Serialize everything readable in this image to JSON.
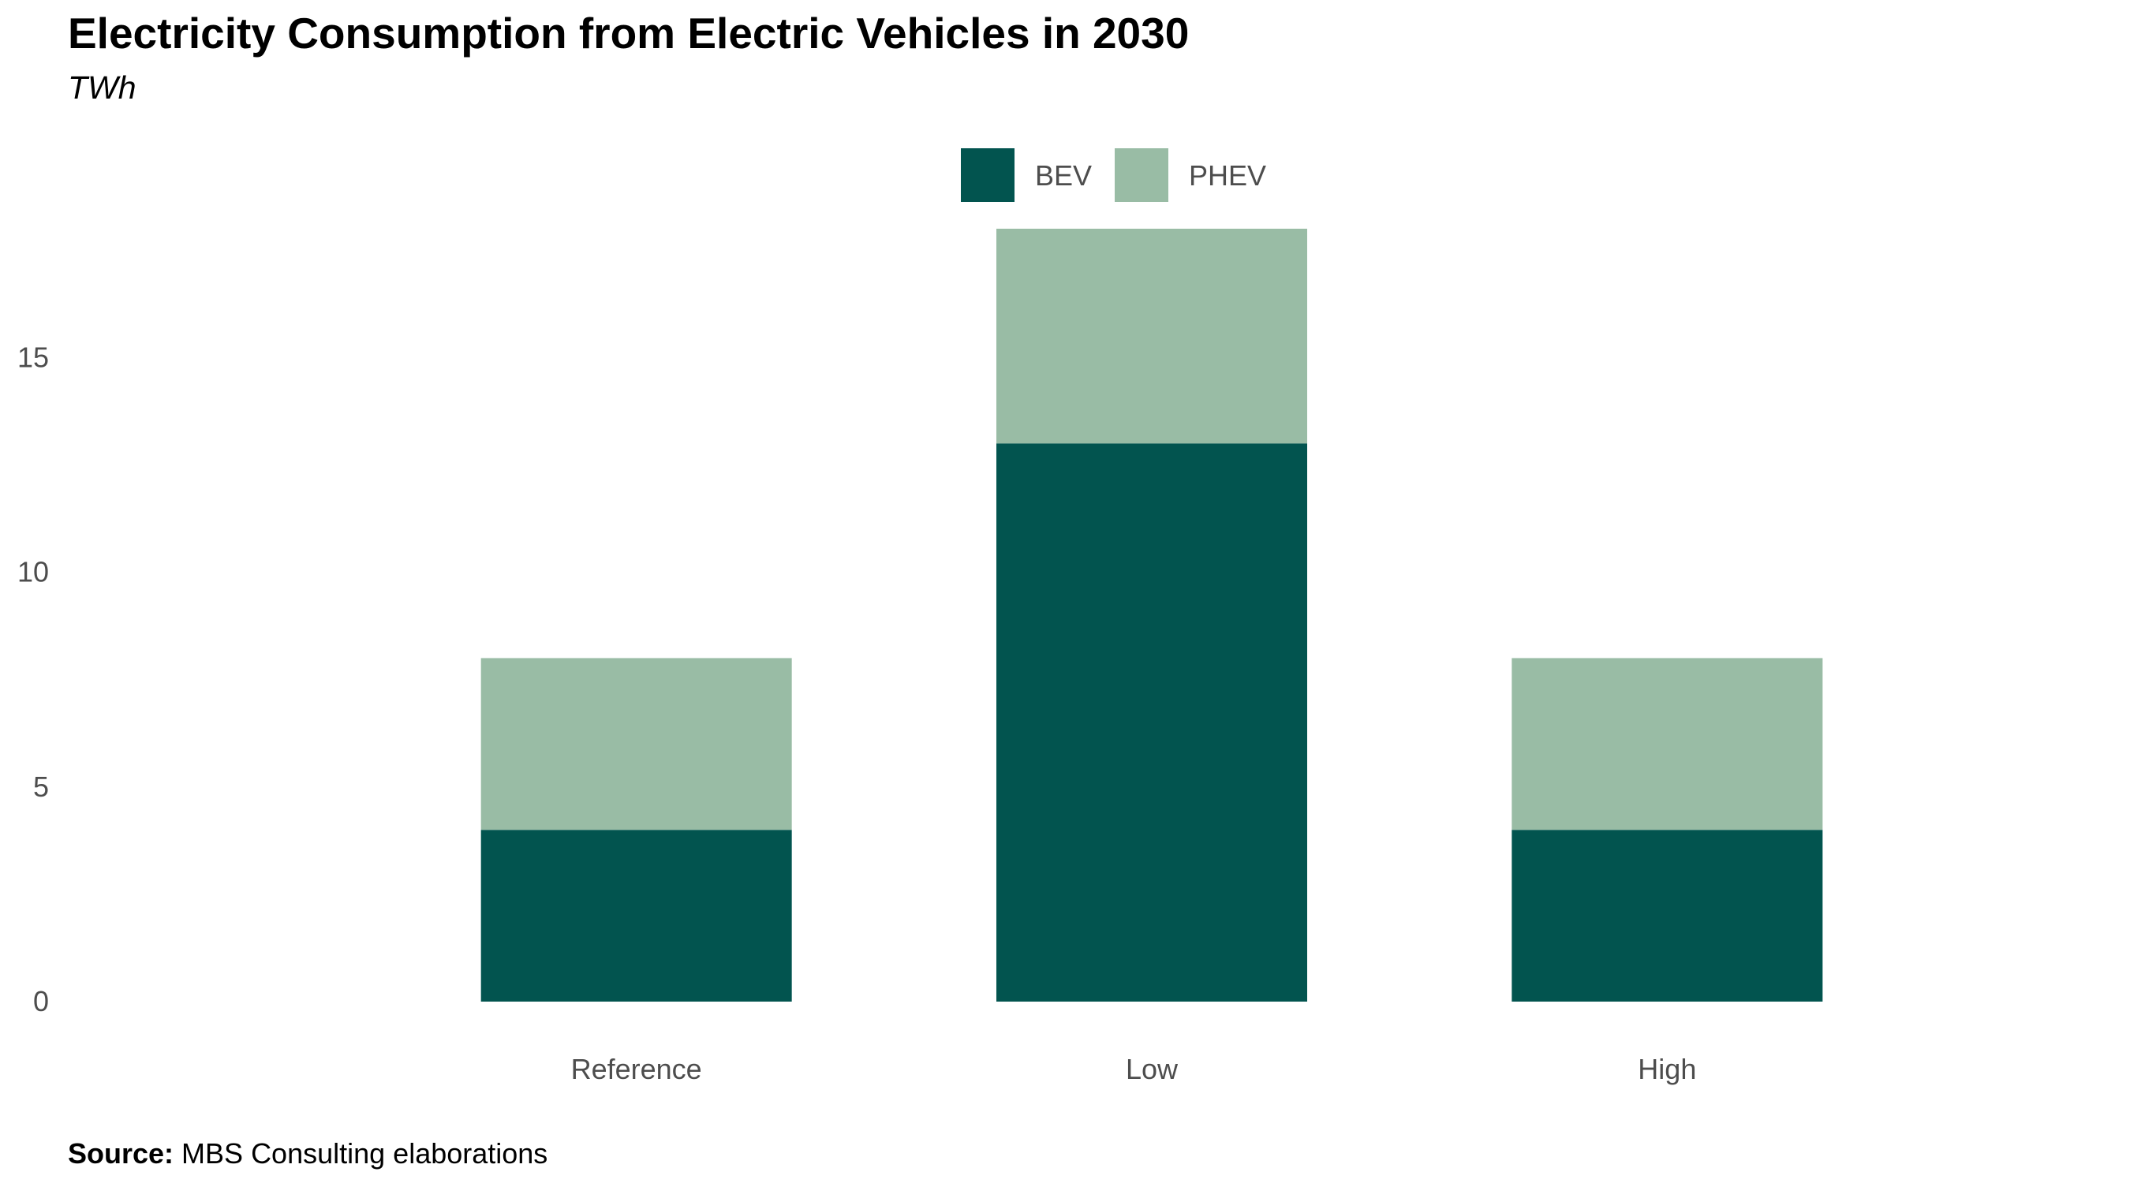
{
  "chart_data": {
    "type": "bar",
    "stacked": true,
    "title": "Electricity Consumption from Electric Vehicles in 2030",
    "subtitle": "TWh",
    "categories": [
      "Reference",
      "Low",
      "High"
    ],
    "series": [
      {
        "name": "BEV",
        "color": "#02544f",
        "values": [
          4,
          13,
          4
        ]
      },
      {
        "name": "PHEV",
        "color": "#99bca5",
        "values": [
          4,
          5,
          4
        ]
      }
    ],
    "ylim": [
      0,
      18
    ],
    "yticks": [
      0,
      5,
      10,
      15
    ],
    "xlabel": "",
    "ylabel": "",
    "grid": false,
    "legend_position": "top-center"
  },
  "source": {
    "label": "Source:",
    "text": " MBS Consulting elaborations"
  }
}
